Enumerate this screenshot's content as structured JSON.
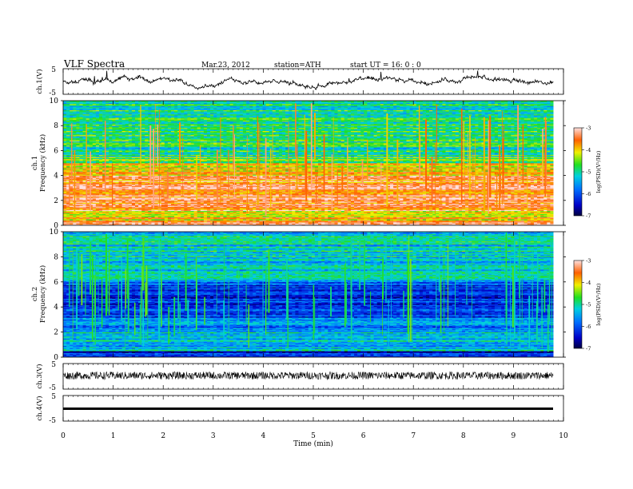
{
  "header": {
    "title": "VLF  Spectra",
    "date": "Mar.23, 2012",
    "station": "station=ATH",
    "start": "start  UT  =    16: 0  : 0"
  },
  "chart_data": [
    {
      "type": "line",
      "panel": "ch1-waveform",
      "ylabel": "ch.1(V)",
      "ylim": [
        -5,
        5
      ],
      "yticks": [
        "5",
        "-5"
      ],
      "xlim": [
        0,
        10
      ],
      "series_summary": "noisy waveform oscillating roughly between -2 and +2.5 V over 0-9.8 min"
    },
    {
      "type": "heatmap",
      "panel": "ch1-spectrogram",
      "ylabel": "ch.1\nFrequency  (kHz)",
      "ylim": [
        0,
        10
      ],
      "yticks": [
        "0",
        "2",
        "4",
        "6",
        "8",
        "10"
      ],
      "xlim": [
        0,
        10
      ],
      "data_extent_min": 9.8,
      "bands_khz": [
        {
          "from": 0,
          "to": 0.3,
          "log_psd": -3.2
        },
        {
          "from": 0.3,
          "to": 1.2,
          "log_psd": -4.0
        },
        {
          "from": 1.2,
          "to": 4.0,
          "log_psd": -3.5
        },
        {
          "from": 4.0,
          "to": 5.0,
          "log_psd": -4.0
        },
        {
          "from": 5.0,
          "to": 5.5,
          "log_psd": -4.6
        },
        {
          "from": 5.5,
          "to": 6.3,
          "log_psd": -5.0
        },
        {
          "from": 6.3,
          "to": 10.0,
          "log_psd": -4.9
        }
      ],
      "colorbar": {
        "label": "log(PSD)(V²/Hz)",
        "range": [
          -7,
          -3
        ],
        "ticks": [
          "-3",
          "-4",
          "-5",
          "-6",
          "-7"
        ]
      }
    },
    {
      "type": "heatmap",
      "panel": "ch2-spectrogram",
      "ylabel": "ch.2\nFrequency  (kHz)",
      "ylim": [
        0,
        10
      ],
      "yticks": [
        "0",
        "2",
        "4",
        "6",
        "8",
        "10"
      ],
      "xlim": [
        0,
        10
      ],
      "data_extent_min": 9.8,
      "bands_khz": [
        {
          "from": 0,
          "to": 0.5,
          "log_psd": -6.3
        },
        {
          "from": 0.5,
          "to": 2.2,
          "log_psd": -5.3
        },
        {
          "from": 2.2,
          "to": 3.2,
          "log_psd": -5.8
        },
        {
          "from": 3.2,
          "to": 6.0,
          "log_psd": -6.2
        },
        {
          "from": 6.0,
          "to": 10.0,
          "log_psd": -5.2
        }
      ],
      "colorbar": {
        "label": "log(PSD)(V²/Hz)",
        "range": [
          -7,
          -3
        ],
        "ticks": [
          "-3",
          "-4",
          "-5",
          "-6",
          "-7"
        ]
      }
    },
    {
      "type": "line",
      "panel": "ch3-waveform",
      "ylabel": "ch.3(V)",
      "ylim": [
        -5,
        5
      ],
      "yticks": [
        "5",
        "-5"
      ],
      "xlim": [
        0,
        10
      ],
      "series_summary": "dense noise roughly between -1 and +1.5 V"
    },
    {
      "type": "line",
      "panel": "ch4-waveform",
      "ylabel": "ch.4(V)",
      "ylim": [
        -5,
        5
      ],
      "yticks": [
        "5",
        "-5"
      ],
      "xlim": [
        0,
        10
      ],
      "series_summary": "flat thick line near -1 V"
    }
  ],
  "xaxis": {
    "label": "Time  (min)",
    "ticks": [
      "0",
      "1",
      "2",
      "3",
      "4",
      "5",
      "6",
      "7",
      "8",
      "9",
      "10"
    ]
  }
}
